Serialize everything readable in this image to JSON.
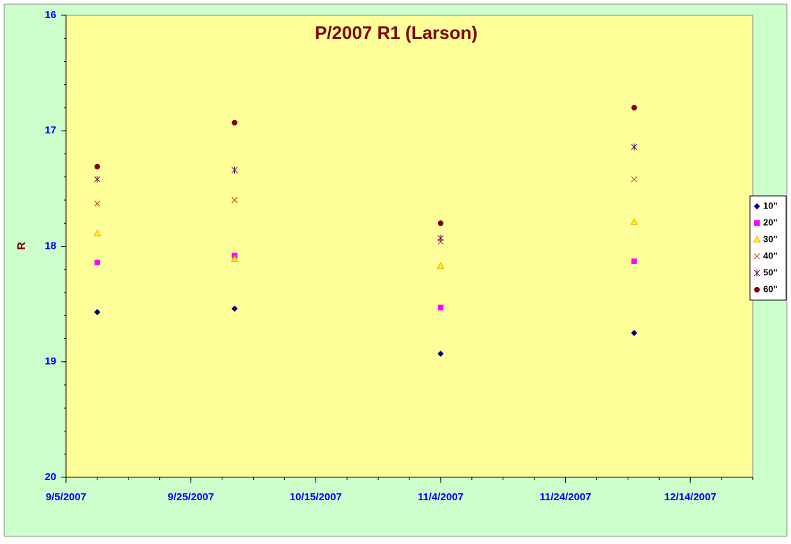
{
  "chart_data": {
    "type": "scatter",
    "title": "P/2007 R1 (Larson)",
    "y_label": "R",
    "x": [
      "2007-09-10",
      "2007-10-02",
      "2007-11-04",
      "2007-12-05"
    ],
    "series": [
      {
        "name": "10\"",
        "color": "#000080",
        "marker": "diamond",
        "values": [
          18.57,
          18.54,
          18.93,
          18.75
        ]
      },
      {
        "name": "20\"",
        "color": "#ff00ff",
        "marker": "square",
        "values": [
          18.14,
          18.08,
          18.53,
          18.13
        ]
      },
      {
        "name": "30\"",
        "color": "#ff9900",
        "marker": "triangle",
        "values": [
          17.89,
          18.11,
          18.17,
          17.79
        ]
      },
      {
        "name": "40\"",
        "color": "#cc3300",
        "marker": "x",
        "values": [
          17.63,
          17.6,
          17.96,
          17.42
        ]
      },
      {
        "name": "50\"",
        "color": "#660066",
        "marker": "star",
        "values": [
          17.42,
          17.34,
          17.93,
          17.14
        ]
      },
      {
        "name": "60\"",
        "color": "#800000",
        "marker": "circle",
        "values": [
          17.31,
          16.93,
          17.8,
          16.8
        ]
      }
    ],
    "xlim": [
      "2007-09-05",
      "2007-12-24"
    ],
    "xticks": [
      {
        "value": "2007-09-05",
        "label": "9/5/2007"
      },
      {
        "value": "2007-09-25",
        "label": "9/25/2007"
      },
      {
        "value": "2007-10-15",
        "label": "10/15/2007"
      },
      {
        "value": "2007-11-04",
        "label": "11/4/2007"
      },
      {
        "value": "2007-11-24",
        "label": "11/24/2007"
      },
      {
        "value": "2007-12-14",
        "label": "12/14/2007"
      }
    ],
    "ylim": [
      16,
      20
    ],
    "yticks": [
      16,
      17,
      18,
      19,
      20
    ],
    "y_inverted": true,
    "legend": "right"
  }
}
